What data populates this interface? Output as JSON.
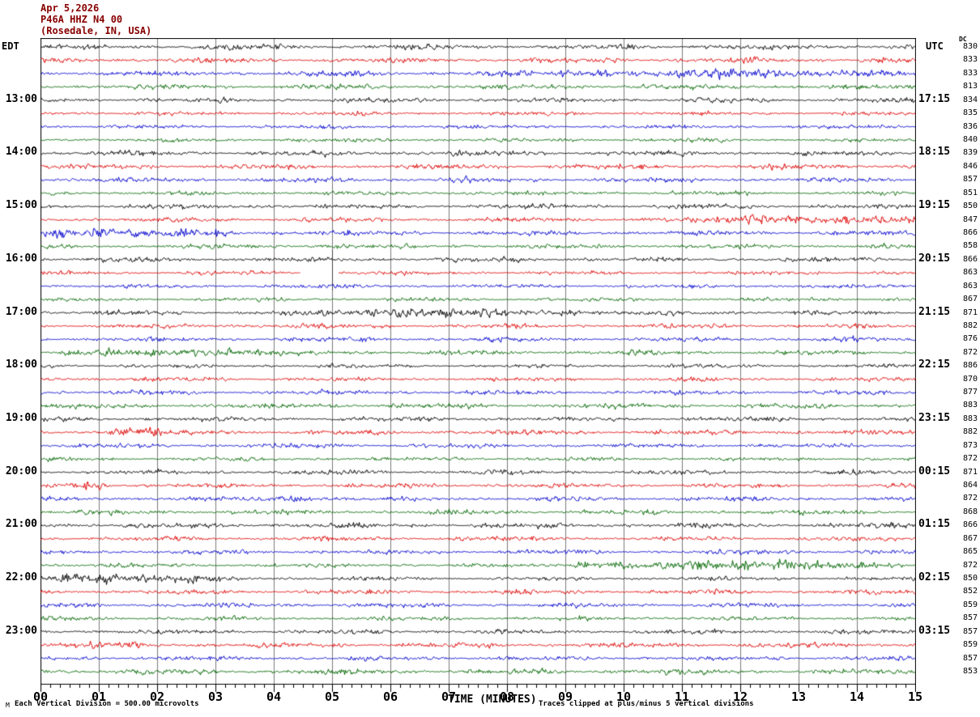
{
  "header": {
    "date": "Apr 5,2026",
    "station": "P46A HHZ N4 00",
    "location": "(Rosedale, IN, USA)",
    "text_color": "#880000"
  },
  "labels": {
    "left_tz": "EDT",
    "right_tz": "UTC",
    "dc_column": "DC"
  },
  "footer": {
    "x_title": "TIME (MINUTES)",
    "left_note": "Each Vertical Division =  500.00 microvolts",
    "right_note": "Traces clipped at plus/minus 5 vertical divisions",
    "corner_mark": "M"
  },
  "chart_data": {
    "type": "line",
    "subtype": "seismogram-helicorder",
    "title": "P46A HHZ N4 00 (Rosedale, IN, USA) Apr 5,2026",
    "xlabel": "TIME (MINUTES)",
    "x_range": [
      0,
      15
    ],
    "x_ticks": [
      "00",
      "01",
      "02",
      "03",
      "04",
      "05",
      "06",
      "07",
      "08",
      "09",
      "10",
      "11",
      "12",
      "13",
      "14",
      "15"
    ],
    "minor_ticks_per_minute": 6,
    "grid": "vertical-minute-lines",
    "grid_color": "#7a7a7a",
    "vertical_division_microvolts": 500.0,
    "clip_divisions": 5,
    "trace_colors": [
      "#000000",
      "#dd0000",
      "#0000cd",
      "#006600"
    ],
    "rows": [
      {
        "dc": 830,
        "color": 0
      },
      {
        "dc": 833,
        "color": 1
      },
      {
        "dc": 833,
        "color": 2,
        "events": [
          {
            "start": 8.3,
            "end": 15,
            "amp": 4.5
          },
          {
            "start": 10.7,
            "end": 12.5,
            "amp": 6.5
          }
        ],
        "spikes": [
          {
            "t": 11.82,
            "amp": 12
          }
        ]
      },
      {
        "dc": 813,
        "color": 3
      },
      {
        "dc": 834,
        "color": 0,
        "left": "13:00",
        "right": "17:15"
      },
      {
        "dc": 835,
        "color": 1
      },
      {
        "dc": 836,
        "color": 2
      },
      {
        "dc": 840,
        "color": 3
      },
      {
        "dc": 839,
        "color": 0,
        "left": "14:00",
        "right": "18:15"
      },
      {
        "dc": 846,
        "color": 1
      },
      {
        "dc": 857,
        "color": 2
      },
      {
        "dc": 851,
        "color": 3
      },
      {
        "dc": 850,
        "color": 0,
        "left": "15:00",
        "right": "19:15"
      },
      {
        "dc": 847,
        "color": 1,
        "events": [
          {
            "start": 11.7,
            "end": 15,
            "amp": 6
          }
        ]
      },
      {
        "dc": 866,
        "color": 2,
        "events": [
          {
            "start": 0,
            "end": 3.1,
            "amp": 6
          }
        ]
      },
      {
        "dc": 858,
        "color": 3
      },
      {
        "dc": 866,
        "color": 0,
        "left": "16:00",
        "right": "20:15"
      },
      {
        "dc": 863,
        "color": 1,
        "gap": [
          4.45,
          5.1
        ],
        "gap_marker_minute": 5.0
      },
      {
        "dc": 863,
        "color": 2
      },
      {
        "dc": 867,
        "color": 3
      },
      {
        "dc": 871,
        "color": 0,
        "left": "17:00",
        "right": "21:15",
        "events": [
          {
            "start": 4.2,
            "end": 9.5,
            "amp": 4
          },
          {
            "start": 5.8,
            "end": 8.0,
            "amp": 6.5
          }
        ]
      },
      {
        "dc": 882,
        "color": 1
      },
      {
        "dc": 876,
        "color": 2
      },
      {
        "dc": 872,
        "color": 3,
        "events": [
          {
            "start": 0.5,
            "end": 4.3,
            "amp": 5
          }
        ]
      },
      {
        "dc": 886,
        "color": 0,
        "left": "18:00",
        "right": "22:15"
      },
      {
        "dc": 870,
        "color": 1
      },
      {
        "dc": 877,
        "color": 2
      },
      {
        "dc": 883,
        "color": 3
      },
      {
        "dc": 883,
        "color": 0,
        "left": "19:00",
        "right": "23:15"
      },
      {
        "dc": 882,
        "color": 1,
        "events": [
          {
            "start": 1.25,
            "end": 1.95,
            "amp": 6.5
          }
        ],
        "spikes": [
          {
            "t": 1.62,
            "amp": 9
          }
        ]
      },
      {
        "dc": 873,
        "color": 2
      },
      {
        "dc": 872,
        "color": 3
      },
      {
        "dc": 871,
        "color": 0,
        "left": "20:00",
        "right": "00:15"
      },
      {
        "dc": 864,
        "color": 1,
        "events": [
          {
            "start": 0.6,
            "end": 1.0,
            "amp": 4.5
          }
        ],
        "spikes": [
          {
            "t": 0.78,
            "amp": 7
          }
        ]
      },
      {
        "dc": 872,
        "color": 2,
        "events": [
          {
            "start": 3.9,
            "end": 4.6,
            "amp": 5
          }
        ]
      },
      {
        "dc": 868,
        "color": 3
      },
      {
        "dc": 866,
        "color": 0,
        "left": "21:00",
        "right": "01:15"
      },
      {
        "dc": 867,
        "color": 1
      },
      {
        "dc": 865,
        "color": 2
      },
      {
        "dc": 872,
        "color": 3,
        "events": [
          {
            "start": 9.3,
            "end": 14.6,
            "amp": 5
          },
          {
            "start": 10.8,
            "end": 13.3,
            "amp": 7.5
          }
        ]
      },
      {
        "dc": 850,
        "color": 0,
        "left": "22:00",
        "right": "02:15",
        "events": [
          {
            "start": 0,
            "end": 3.0,
            "amp": 5.5
          },
          {
            "start": 0,
            "end": 1.3,
            "amp": 6.5
          }
        ]
      },
      {
        "dc": 852,
        "color": 1
      },
      {
        "dc": 859,
        "color": 2
      },
      {
        "dc": 857,
        "color": 3
      },
      {
        "dc": 857,
        "color": 0,
        "left": "23:00",
        "right": "03:15"
      },
      {
        "dc": 859,
        "color": 1,
        "events": [
          {
            "start": 0.85,
            "end": 1.6,
            "amp": 5.5
          }
        ]
      },
      {
        "dc": 857,
        "color": 2
      },
      {
        "dc": 853,
        "color": 3
      }
    ]
  }
}
